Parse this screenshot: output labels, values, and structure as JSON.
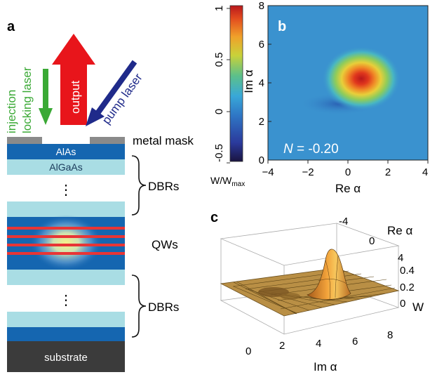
{
  "panel_a": {
    "label": "a",
    "arrows": {
      "injection": {
        "line1": "injection",
        "line2": "locking laser",
        "color": "#3aa935"
      },
      "output": {
        "label": "output",
        "color": "#e8151b"
      },
      "pump": {
        "label": "pump laser",
        "color": "#1f2a8a"
      }
    },
    "layers": {
      "metal_mask": "metal mask",
      "alas": "AlAs",
      "algaas": "AlGaAs",
      "dbr_top": "DBRs",
      "dbr_bottom": "DBRs",
      "qws": "QWs",
      "substrate": "substrate",
      "ellipsis_top": "⋮",
      "ellipsis_bottom": "⋮"
    },
    "colors": {
      "dark_blue": "#1566b0",
      "light_blue": "#a9dde4",
      "qw_red": "#e83535",
      "substrate": "#3b3b3b",
      "mask": "#8a8a8a"
    }
  },
  "panel_b": {
    "label": "b",
    "annotation_italic": "N",
    "annotation_rest": " = -0.20",
    "xlabel": "Re α",
    "ylabel": "Im α",
    "x_ticks": [
      "−4",
      "−2",
      "0",
      "2",
      "4"
    ],
    "y_ticks": [
      "0",
      "2",
      "4",
      "6",
      "8"
    ],
    "colorbar_ticks": [
      "-0.5",
      "0",
      "0.5",
      "1"
    ],
    "colorbar_label": "W/W",
    "colorbar_label_sub": "max"
  },
  "panel_c": {
    "label": "c",
    "re_axis_label": "Re α",
    "re_ticks": [
      "-4",
      "0",
      "4"
    ],
    "w_ticks": [
      "0",
      "0.2",
      "0.4"
    ],
    "w_label": "W",
    "im_axis_label": "Im α",
    "im_ticks": [
      "0",
      "2",
      "4",
      "6",
      "8"
    ]
  },
  "chart_data": {
    "type": "heatmap",
    "xlabel": "Re α",
    "ylabel": "Im α",
    "xlim": [
      -4,
      4
    ],
    "ylim": [
      0,
      8
    ],
    "colorbar_range": [
      -0.5,
      1
    ],
    "peak": {
      "re": 0.7,
      "im": 4.2,
      "value": 1.0
    },
    "negative_trough": {
      "re": -0.5,
      "im": 3.2,
      "value": -0.15
    }
  }
}
